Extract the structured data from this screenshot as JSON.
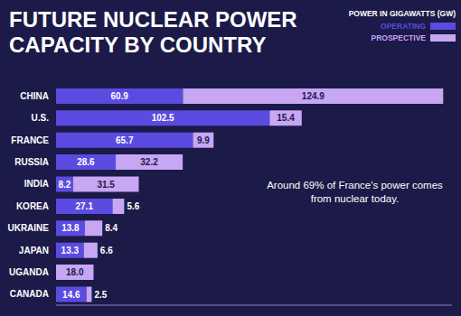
{
  "chart_data": {
    "type": "bar",
    "orientation": "horizontal",
    "stacked": true,
    "title": "FUTURE NUCLEAR POWER CAPACITY BY COUNTRY",
    "legend_title": "POWER IN GIGAWATTS (GW)",
    "annotation": "Around 69% of France's power comes from nuclear today.",
    "categories": [
      "CHINA",
      "U.S.",
      "FRANCE",
      "RUSSIA",
      "INDIA",
      "KOREA",
      "UKRAINE",
      "JAPAN",
      "UGANDA",
      "CANADA"
    ],
    "series": [
      {
        "name": "OPERATING",
        "color": "#5b4be0",
        "values": [
          60.9,
          102.5,
          65.7,
          28.6,
          8.2,
          27.1,
          13.8,
          13.3,
          null,
          14.6
        ]
      },
      {
        "name": "PROSPECTIVE",
        "color": "#c7a6f4",
        "values": [
          124.9,
          15.4,
          9.9,
          32.2,
          31.5,
          5.6,
          8.4,
          6.6,
          18.0,
          2.5
        ],
        "value_labels": [
          "124.9",
          "15.4",
          "9.9",
          "32.2",
          "31.5",
          "5.6",
          "8.4",
          "6.6",
          "18.0",
          "2.5"
        ]
      }
    ],
    "xlim": [
      0,
      190
    ],
    "data_labels": true,
    "tick_labels": "y",
    "legend": "top-right",
    "grid": false
  }
}
